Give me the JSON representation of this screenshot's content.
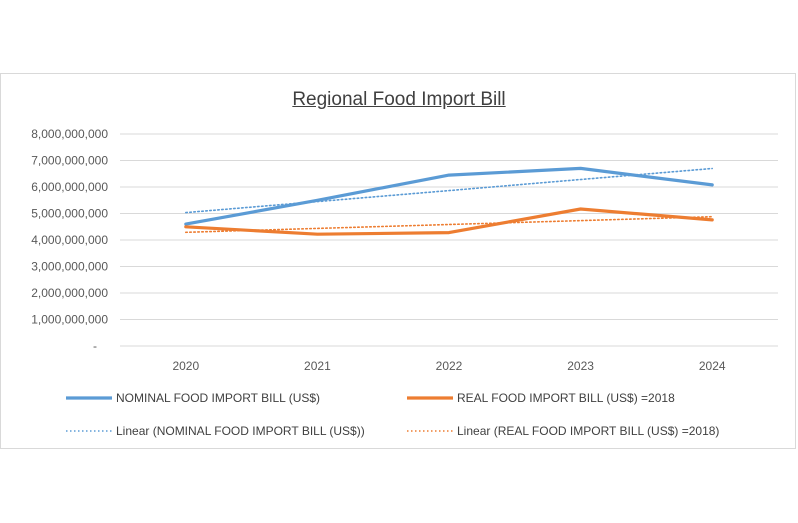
{
  "chart_data": {
    "type": "line",
    "title": "Regional Food Import Bill",
    "categories": [
      "2020",
      "2021",
      "2022",
      "2023",
      "2024"
    ],
    "ylim": [
      0,
      8000000000
    ],
    "yticks": [
      0,
      1000000000,
      2000000000,
      3000000000,
      4000000000,
      5000000000,
      6000000000,
      7000000000,
      8000000000
    ],
    "ytick_labels": [
      "-",
      "1,000,000,000",
      "2,000,000,000",
      "3,000,000,000",
      "4,000,000,000",
      "5,000,000,000",
      "6,000,000,000",
      "7,000,000,000",
      "8,000,000,000"
    ],
    "grid": true,
    "legend_position": "bottom",
    "series": [
      {
        "name": "NOMINAL FOOD IMPORT BILL (US$)",
        "values": [
          4600000000,
          5500000000,
          6450000000,
          6700000000,
          6080000000
        ],
        "color": "#5b9bd5",
        "style": "solid"
      },
      {
        "name": "REAL FOOD IMPORT BILL (US$) =2018",
        "values": [
          4500000000,
          4220000000,
          4280000000,
          5170000000,
          4760000000
        ],
        "color": "#ed7d31",
        "style": "solid"
      },
      {
        "name": "Linear (NOMINAL FOOD IMPORT BILL (US$))",
        "trend_of": 0,
        "color": "#5b9bd5",
        "style": "dotted"
      },
      {
        "name": "Linear (REAL FOOD IMPORT BILL (US$) =2018)",
        "trend_of": 1,
        "color": "#ed7d31",
        "style": "dotted"
      }
    ]
  }
}
